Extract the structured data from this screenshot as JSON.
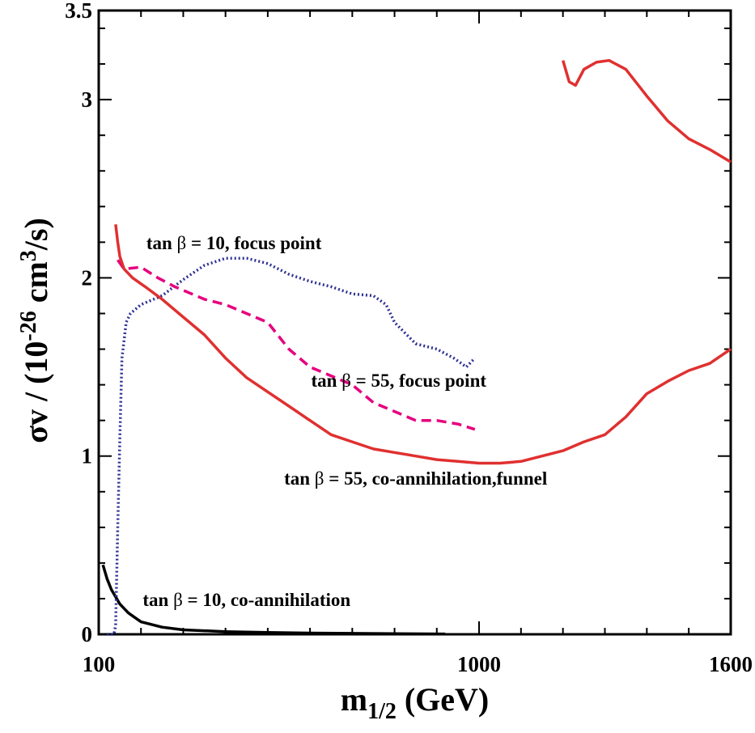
{
  "chart_data": {
    "type": "line",
    "title": "",
    "xlabel": {
      "main": "m",
      "sub": "1/2",
      "rest": " (GeV)"
    },
    "ylabel": {
      "main": "σv / (10",
      "sup1": "-26",
      "mid": " cm",
      "sup2": "3",
      "rest": "/s)"
    },
    "xlim": [
      100,
      1600
    ],
    "ylim": [
      0,
      3.5
    ],
    "x_tick_labels": [
      "100",
      "1000",
      "1600"
    ],
    "y_tick_labels": [
      "0",
      "1",
      "2",
      "3",
      "3.5"
    ],
    "grid": false,
    "series": [
      {
        "key": "tb10_coann",
        "color": "#000000",
        "style": "solid",
        "points": [
          [
            110,
            0.39
          ],
          [
            120,
            0.31
          ],
          [
            130,
            0.25
          ],
          [
            140,
            0.21
          ],
          [
            150,
            0.17
          ],
          [
            170,
            0.12
          ],
          [
            200,
            0.07
          ],
          [
            250,
            0.04
          ],
          [
            300,
            0.025
          ],
          [
            400,
            0.015
          ],
          [
            500,
            0.01
          ],
          [
            600,
            0.007
          ],
          [
            700,
            0.005
          ],
          [
            800,
            0.003
          ],
          [
            920,
            0.002
          ]
        ]
      },
      {
        "key": "tb10_focus",
        "color": "#2e3192",
        "style": "dotted",
        "points": [
          [
            120,
            0.0
          ],
          [
            136,
            0.0
          ],
          [
            140,
            0.05
          ],
          [
            145,
            0.6
          ],
          [
            150,
            1.1
          ],
          [
            155,
            1.55
          ],
          [
            160,
            1.65
          ],
          [
            165,
            1.75
          ],
          [
            175,
            1.8
          ],
          [
            200,
            1.85
          ],
          [
            250,
            1.9
          ],
          [
            300,
            1.99
          ],
          [
            350,
            2.07
          ],
          [
            400,
            2.11
          ],
          [
            450,
            2.11
          ],
          [
            500,
            2.08
          ],
          [
            550,
            2.02
          ],
          [
            600,
            1.98
          ],
          [
            650,
            1.95
          ],
          [
            700,
            1.91
          ],
          [
            750,
            1.9
          ],
          [
            780,
            1.85
          ],
          [
            800,
            1.75
          ],
          [
            850,
            1.63
          ],
          [
            900,
            1.6
          ],
          [
            940,
            1.55
          ],
          [
            970,
            1.5
          ],
          [
            990,
            1.55
          ]
        ]
      },
      {
        "key": "tb55_focus",
        "color": "#e6007e",
        "style": "dashed",
        "points": [
          [
            145,
            2.1
          ],
          [
            160,
            2.05
          ],
          [
            200,
            2.06
          ],
          [
            240,
            2.0
          ],
          [
            280,
            1.95
          ],
          [
            350,
            1.88
          ],
          [
            400,
            1.85
          ],
          [
            450,
            1.8
          ],
          [
            500,
            1.75
          ],
          [
            550,
            1.6
          ],
          [
            600,
            1.5
          ],
          [
            650,
            1.45
          ],
          [
            700,
            1.4
          ],
          [
            750,
            1.3
          ],
          [
            800,
            1.25
          ],
          [
            850,
            1.2
          ],
          [
            900,
            1.2
          ],
          [
            950,
            1.18
          ],
          [
            990,
            1.15
          ]
        ]
      },
      {
        "key": "tb55_coann_left",
        "color": "#e03030",
        "style": "solid",
        "points": [
          [
            140,
            2.3
          ],
          [
            145,
            2.2
          ],
          [
            150,
            2.12
          ],
          [
            160,
            2.05
          ],
          [
            180,
            2.0
          ],
          [
            210,
            1.95
          ],
          [
            250,
            1.88
          ],
          [
            300,
            1.78
          ],
          [
            350,
            1.68
          ],
          [
            400,
            1.55
          ],
          [
            450,
            1.44
          ],
          [
            500,
            1.36
          ],
          [
            550,
            1.28
          ],
          [
            600,
            1.2
          ],
          [
            650,
            1.12
          ],
          [
            700,
            1.08
          ],
          [
            750,
            1.04
          ],
          [
            800,
            1.02
          ],
          [
            850,
            1.0
          ],
          [
            900,
            0.98
          ],
          [
            950,
            0.97
          ],
          [
            1000,
            0.96
          ],
          [
            1050,
            0.96
          ],
          [
            1100,
            0.97
          ],
          [
            1150,
            1.0
          ],
          [
            1200,
            1.03
          ],
          [
            1250,
            1.08
          ],
          [
            1300,
            1.12
          ],
          [
            1350,
            1.22
          ],
          [
            1400,
            1.35
          ],
          [
            1450,
            1.42
          ],
          [
            1500,
            1.48
          ],
          [
            1550,
            1.52
          ],
          [
            1600,
            1.6
          ]
        ]
      },
      {
        "key": "tb55_coann_right",
        "color": "#e03030",
        "style": "solid",
        "points": [
          [
            1200,
            3.22
          ],
          [
            1215,
            3.1
          ],
          [
            1230,
            3.08
          ],
          [
            1250,
            3.17
          ],
          [
            1280,
            3.21
          ],
          [
            1310,
            3.22
          ],
          [
            1350,
            3.17
          ],
          [
            1400,
            3.02
          ],
          [
            1450,
            2.88
          ],
          [
            1500,
            2.78
          ],
          [
            1550,
            2.72
          ],
          [
            1600,
            2.65
          ]
        ]
      }
    ],
    "annotations": [
      {
        "key": "tb10_focus",
        "pre": "tan ",
        "greek": "β",
        "post": " = 10, focus point",
        "x": 420,
        "y": 2.16
      },
      {
        "key": "tb55_focus",
        "pre": "tan ",
        "greek": "β",
        "post": " = 55, focus point",
        "x": 810,
        "y": 1.39
      },
      {
        "key": "tb55_coann",
        "pre": "tan ",
        "greek": "β",
        "post": " = 55, co-annihilation,funnel",
        "x": 850,
        "y": 0.84
      },
      {
        "key": "tb10_coann",
        "pre": "tan ",
        "greek": "β",
        "post": " = 10, co-annihilation",
        "x": 450,
        "y": 0.16
      }
    ]
  }
}
